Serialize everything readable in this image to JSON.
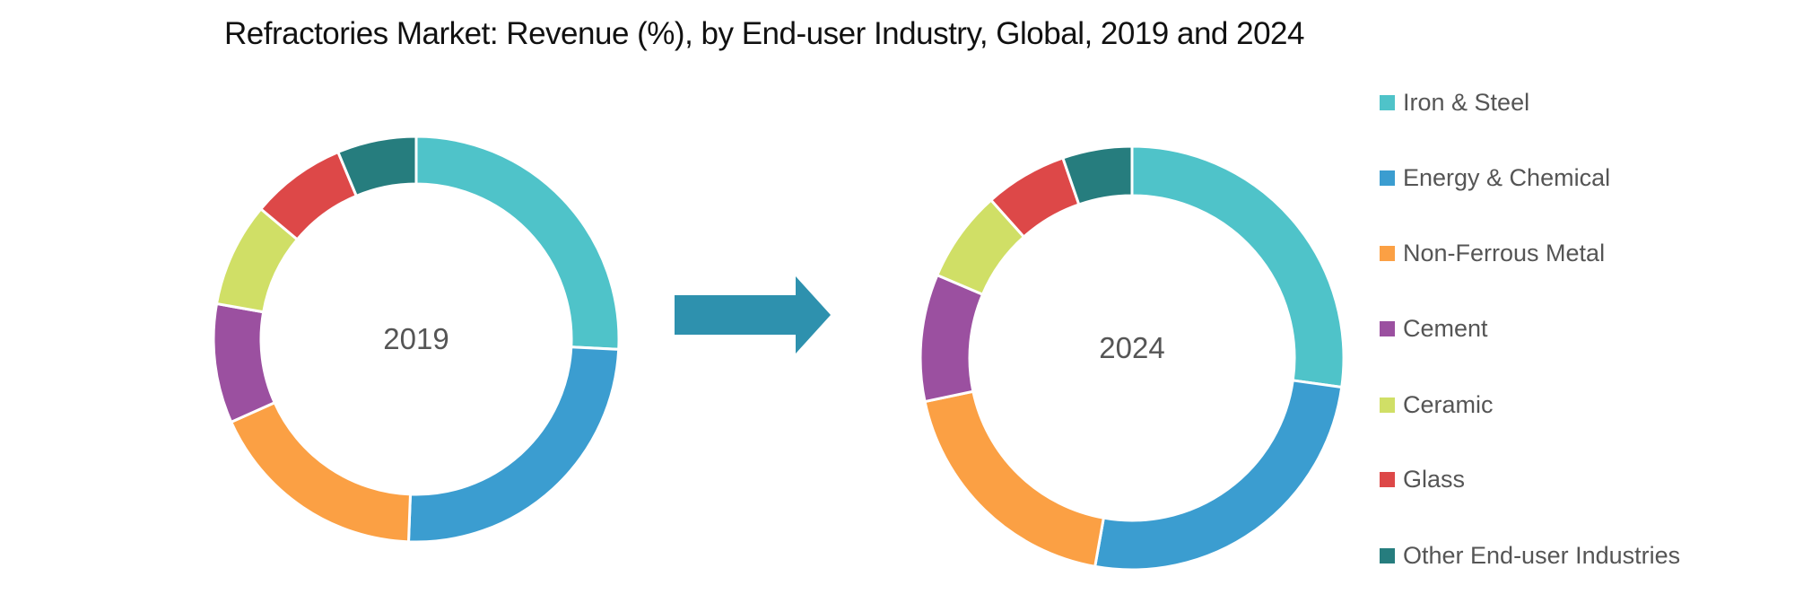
{
  "chart_data": [
    {
      "type": "pie",
      "variant": "donut",
      "center_label": "2019",
      "categories": [
        "Iron & Steel",
        "Energy & Chemical",
        "Non-Ferrous Metal",
        "Cement",
        "Ceramic",
        "Glass",
        "Other End-user Industries"
      ],
      "values": [
        25.8,
        24.8,
        17.7,
        9.5,
        8.3,
        7.6,
        6.3
      ],
      "unit": "%"
    },
    {
      "type": "pie",
      "variant": "donut",
      "center_label": "2024",
      "categories": [
        "Iron & Steel",
        "Energy & Chemical",
        "Non-Ferrous Metal",
        "Cement",
        "Ceramic",
        "Glass",
        "Other End-user Industries"
      ],
      "values": [
        27.2,
        25.6,
        18.9,
        9.7,
        7.0,
        6.3,
        5.3
      ],
      "unit": "%"
    }
  ],
  "title": "Refractories Market: Revenue (%), by End-user Industry, Global, 2019 and 2024",
  "legend": {
    "placement": "right",
    "items": [
      {
        "label": "Iron & Steel",
        "color": "#4FC3C9"
      },
      {
        "label": "Energy & Chemical",
        "color": "#3B9DD0"
      },
      {
        "label": "Non-Ferrous Metal",
        "color": "#FBA044"
      },
      {
        "label": "Cement",
        "color": "#9B50A0"
      },
      {
        "label": "Ceramic",
        "color": "#D0DF66"
      },
      {
        "label": "Glass",
        "color": "#DD4848"
      },
      {
        "label": "Other End-user Industries",
        "color": "#267D7E"
      }
    ]
  },
  "arrow": {
    "icon": "right-arrow-icon",
    "color": "#2E91AE"
  }
}
